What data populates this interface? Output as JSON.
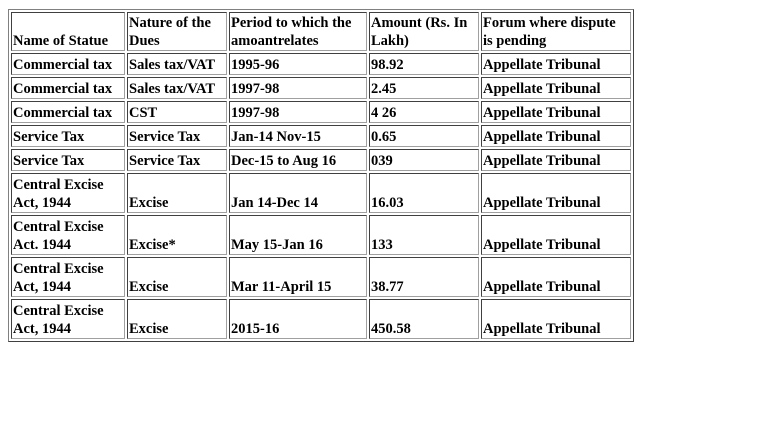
{
  "table": {
    "headers": [
      "Name of Statue",
      "Nature of the Dues",
      "Period to which the amoantrelates",
      "Amount (Rs. In Lakh)",
      "Forum where dispute is pending"
    ],
    "header_lines": [
      [
        "",
        "Name of Statue"
      ],
      [
        "Nature of the",
        "Dues"
      ],
      [
        "Period to which the",
        "amoantrelates"
      ],
      [
        "Amount (Rs. In",
        "Lakh)"
      ],
      [
        "Forum where dispute",
        "is pending"
      ]
    ],
    "rows": [
      {
        "statue": [
          "Commercial tax"
        ],
        "nature": "Sales tax/VAT",
        "period": "1995-96",
        "amount": "98.92",
        "forum": "Appellate Tribunal"
      },
      {
        "statue": [
          "Commercial tax"
        ],
        "nature": "Sales tax/VAT",
        "period": "1997-98",
        "amount": "2.45",
        "forum": "Appellate Tribunal"
      },
      {
        "statue": [
          "Commercial tax"
        ],
        "nature": "CST",
        "period": "1997-98",
        "amount": "4 26",
        "forum": "Appellate Tribunal"
      },
      {
        "statue": [
          "Service Tax"
        ],
        "nature": "Service Tax",
        "period": "Jan-14 Nov-15",
        "amount": "0.65",
        "forum": "Appellate Tribunal"
      },
      {
        "statue": [
          "Service Tax"
        ],
        "nature": "Service Tax",
        "period": "Dec-15 to Aug 16",
        "amount": "039",
        "forum": "Appellate Tribunal"
      },
      {
        "statue": [
          "Central Excise",
          "Act, 1944"
        ],
        "nature": "Excise",
        "period": "Jan 14-Dec 14",
        "amount": "16.03",
        "forum": "Appellate Tribunal"
      },
      {
        "statue": [
          "Central Excise",
          "Act. 1944"
        ],
        "nature": "Excise*",
        "period": "May 15-Jan 16",
        "amount": "133",
        "forum": "Appellate Tribunal"
      },
      {
        "statue": [
          "Central Excise",
          "Act, 1944"
        ],
        "nature": "Excise",
        "period": "Mar 11-April 15",
        "amount": "38.77",
        "forum": "Appellate Tribunal"
      },
      {
        "statue": [
          "Central Excise",
          "Act, 1944"
        ],
        "nature": "Excise",
        "period": "2015-16",
        "amount": "450.58",
        "forum": "Appellate Tribunal"
      }
    ]
  }
}
